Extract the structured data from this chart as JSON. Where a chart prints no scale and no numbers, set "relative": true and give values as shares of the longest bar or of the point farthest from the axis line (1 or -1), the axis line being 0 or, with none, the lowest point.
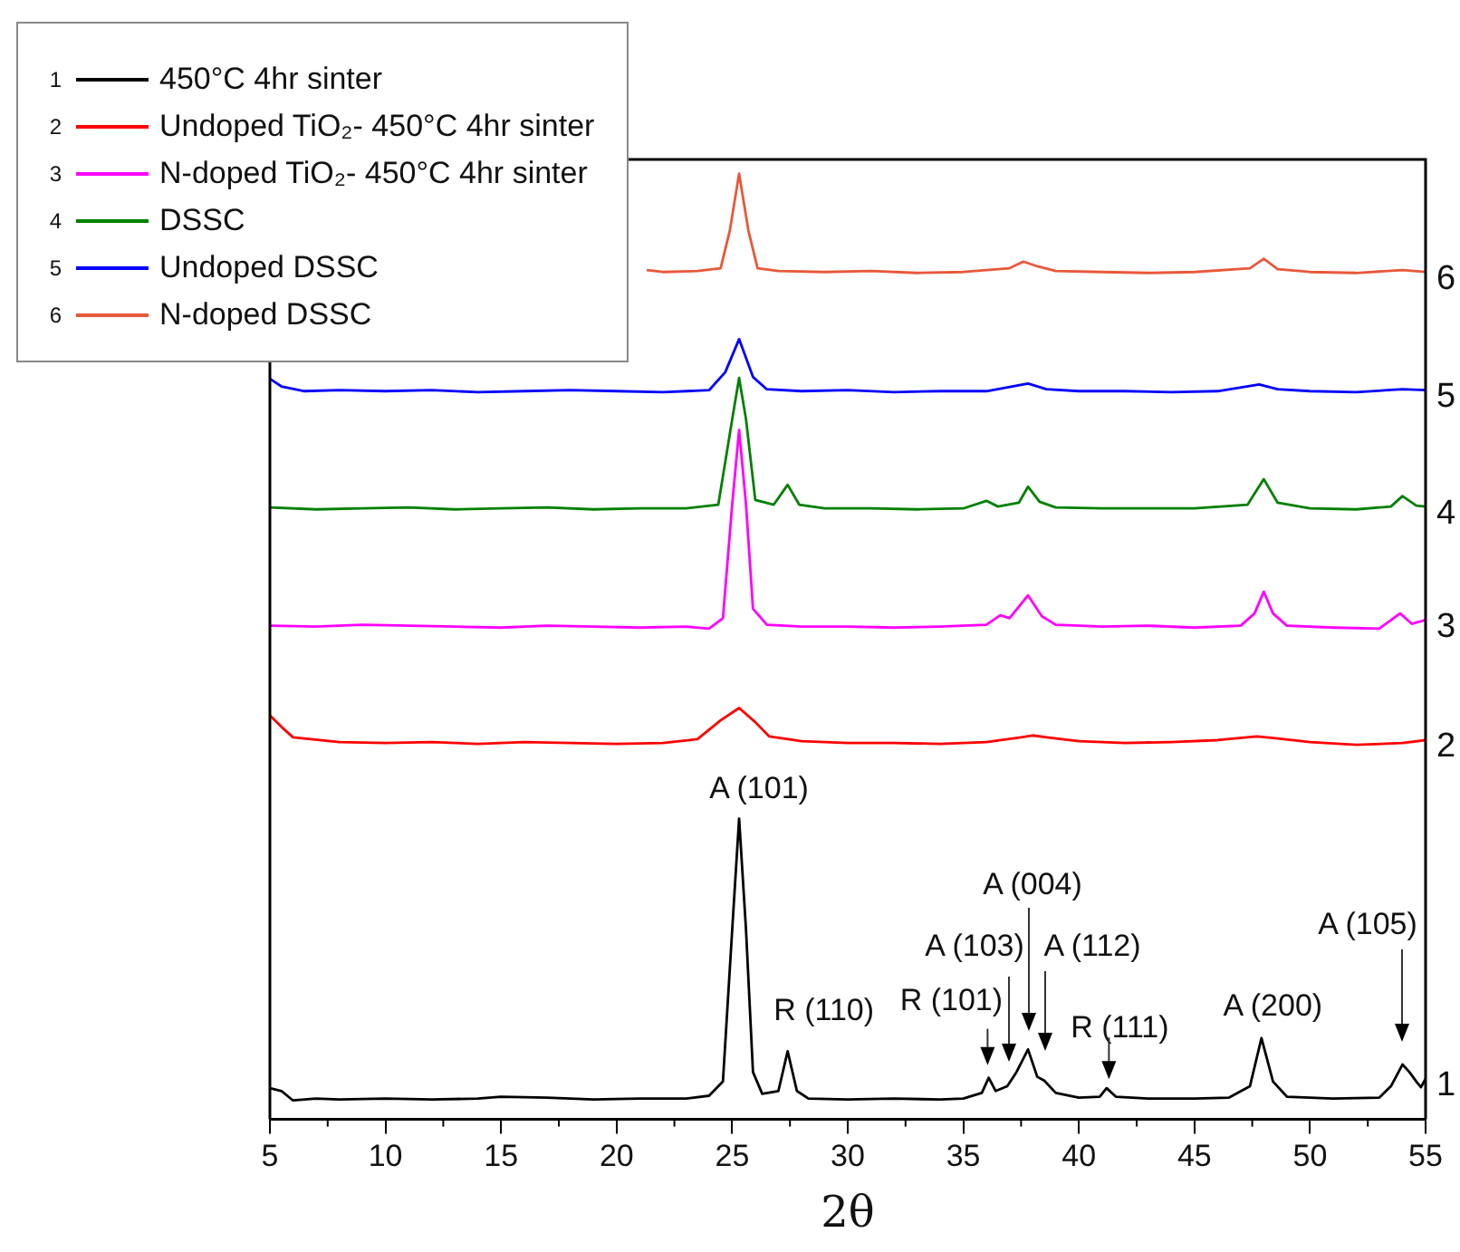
{
  "chart_data": {
    "type": "line",
    "xlabel": "2θ",
    "relative": true,
    "xlim": [
      5,
      55
    ],
    "xticks": [
      5,
      10,
      15,
      20,
      25,
      30,
      35,
      40,
      45,
      50,
      55
    ],
    "legend": "top left",
    "grid": false,
    "marker": "none",
    "line_style": "solid",
    "series": [
      {
        "name": "450°C 4hr sinter",
        "color": "#000000",
        "x": [
          5,
          5.5,
          6,
          7,
          8,
          10,
          12,
          14,
          15,
          17,
          19,
          21,
          23,
          24,
          24.6,
          25,
          25.3,
          25.6,
          25.9,
          26.3,
          27,
          27.4,
          27.8,
          28.3,
          30,
          32,
          34,
          35,
          35.8,
          36.1,
          36.4,
          36.9,
          37.3,
          37.8,
          38.2,
          38.5,
          39,
          40,
          40.9,
          41.2,
          41.6,
          43,
          45,
          46.5,
          47.4,
          47.9,
          48.4,
          49,
          51,
          53,
          53.5,
          54,
          54.3,
          54.6,
          54.8,
          55
        ],
        "values": [
          0.033,
          0.03,
          0.02,
          0.022,
          0.021,
          0.022,
          0.021,
          0.022,
          0.024,
          0.023,
          0.021,
          0.022,
          0.022,
          0.025,
          0.04,
          0.2,
          0.318,
          0.2,
          0.05,
          0.027,
          0.03,
          0.072,
          0.03,
          0.022,
          0.021,
          0.022,
          0.021,
          0.022,
          0.028,
          0.044,
          0.03,
          0.035,
          0.05,
          0.074,
          0.045,
          0.041,
          0.028,
          0.023,
          0.024,
          0.033,
          0.024,
          0.022,
          0.022,
          0.023,
          0.035,
          0.086,
          0.04,
          0.024,
          0.022,
          0.023,
          0.035,
          0.058,
          0.05,
          0.04,
          0.034,
          0.043
        ]
      },
      {
        "name": "Undoped TiO₂- 450°C 4hr sinter",
        "color": "#ff0000",
        "x": [
          5,
          5.5,
          6,
          8,
          10,
          12,
          14,
          16,
          18,
          20,
          22,
          23.5,
          24.5,
          25.3,
          26,
          26.6,
          28,
          30,
          32,
          34,
          36,
          37.5,
          38,
          38.6,
          40,
          42,
          44,
          46,
          47.7,
          48.5,
          50,
          52,
          54,
          55
        ],
        "values": [
          0.427,
          0.415,
          0.404,
          0.399,
          0.398,
          0.399,
          0.397,
          0.399,
          0.398,
          0.397,
          0.398,
          0.402,
          0.422,
          0.435,
          0.42,
          0.405,
          0.4,
          0.398,
          0.398,
          0.397,
          0.399,
          0.404,
          0.406,
          0.404,
          0.4,
          0.398,
          0.399,
          0.401,
          0.405,
          0.403,
          0.399,
          0.396,
          0.398,
          0.401
        ]
      },
      {
        "name": "N-doped TiO₂- 450°C 4hr sinter",
        "color": "#ff00ff",
        "x": [
          5,
          7,
          9,
          11,
          13,
          15,
          17,
          19,
          21,
          23,
          24,
          24.6,
          25,
          25.3,
          25.6,
          25.9,
          26.5,
          28,
          30,
          32,
          34,
          36,
          36.6,
          37,
          37.8,
          38.4,
          39,
          41,
          43,
          45,
          47,
          47.6,
          48,
          48.4,
          49,
          51,
          53,
          53.9,
          54.4,
          55
        ],
        "values": [
          0.522,
          0.521,
          0.523,
          0.522,
          0.521,
          0.52,
          0.522,
          0.521,
          0.52,
          0.521,
          0.519,
          0.53,
          0.65,
          0.729,
          0.65,
          0.54,
          0.523,
          0.521,
          0.521,
          0.52,
          0.521,
          0.523,
          0.533,
          0.53,
          0.554,
          0.532,
          0.523,
          0.521,
          0.522,
          0.52,
          0.522,
          0.535,
          0.558,
          0.535,
          0.522,
          0.52,
          0.519,
          0.535,
          0.524,
          0.528
        ]
      },
      {
        "name": "DSSC",
        "color": "#008000",
        "x": [
          5,
          7,
          9,
          11,
          13,
          15,
          17,
          19,
          21,
          23,
          24.4,
          25,
          25.3,
          25.6,
          26,
          26.8,
          27.4,
          27.9,
          29,
          31,
          33,
          35,
          36,
          36.5,
          37.4,
          37.8,
          38.3,
          39,
          41,
          43,
          45,
          47.3,
          48,
          48.6,
          50,
          52,
          53.5,
          54,
          54.6,
          55
        ],
        "values": [
          0.647,
          0.645,
          0.646,
          0.647,
          0.645,
          0.646,
          0.647,
          0.645,
          0.646,
          0.646,
          0.65,
          0.74,
          0.784,
          0.74,
          0.655,
          0.65,
          0.671,
          0.65,
          0.646,
          0.646,
          0.645,
          0.646,
          0.654,
          0.648,
          0.652,
          0.669,
          0.653,
          0.647,
          0.646,
          0.646,
          0.646,
          0.65,
          0.677,
          0.652,
          0.646,
          0.645,
          0.648,
          0.659,
          0.649,
          0.648
        ]
      },
      {
        "name": "Undoped DSSC",
        "color": "#0000ff",
        "x": [
          5,
          5.5,
          6.5,
          8,
          10,
          12,
          14,
          16,
          18,
          20,
          22,
          24,
          24.7,
          25.3,
          25.9,
          26.5,
          28,
          30,
          32,
          34,
          36,
          37.8,
          38.6,
          40,
          42,
          44,
          46,
          47.8,
          48.6,
          50,
          52,
          54,
          55
        ],
        "values": [
          0.783,
          0.775,
          0.77,
          0.771,
          0.77,
          0.771,
          0.769,
          0.77,
          0.771,
          0.77,
          0.769,
          0.771,
          0.79,
          0.825,
          0.785,
          0.772,
          0.77,
          0.771,
          0.769,
          0.77,
          0.77,
          0.778,
          0.772,
          0.77,
          0.77,
          0.769,
          0.77,
          0.777,
          0.772,
          0.77,
          0.769,
          0.772,
          0.771
        ]
      },
      {
        "name": "N-doped DSSC",
        "color": "#e8583a",
        "x": [
          21.3,
          22,
          23.5,
          24.5,
          24.9,
          25.3,
          25.7,
          26.1,
          27,
          29,
          31,
          33,
          35,
          37,
          37.6,
          38.2,
          39,
          41,
          43,
          45,
          47.4,
          48,
          48.6,
          50,
          52,
          54,
          55
        ],
        "values": [
          0.898,
          0.896,
          0.897,
          0.9,
          0.94,
          1.0,
          0.94,
          0.9,
          0.897,
          0.896,
          0.897,
          0.895,
          0.896,
          0.9,
          0.907,
          0.902,
          0.897,
          0.896,
          0.895,
          0.896,
          0.9,
          0.91,
          0.899,
          0.896,
          0.895,
          0.898,
          0.896
        ]
      }
    ],
    "annotations": [
      {
        "text": "A (101)",
        "x": 25.3,
        "y": 0.318
      },
      {
        "text": "R (110)",
        "x": 27.4,
        "y": 0.072
      },
      {
        "text": "R (101)",
        "x": 36.05,
        "y": 0.044
      },
      "A (103)",
      "A (004)",
      "A (112)",
      {
        "text": "R (111)",
        "x": 41.3,
        "y": 0.033
      },
      {
        "text": "A (200)",
        "x": 48,
        "y": 0.086
      },
      "A (105)",
      "1",
      "2",
      "3",
      "4",
      "5",
      "6"
    ]
  }
}
